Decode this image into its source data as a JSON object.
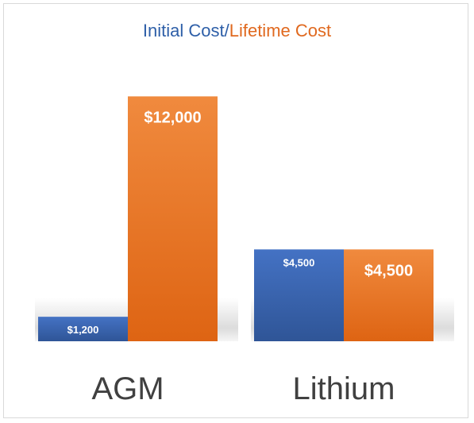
{
  "chart_data": {
    "type": "bar",
    "title_parts": {
      "first": "Initial Cost",
      "separator": "/",
      "second": "Lifetime Cost"
    },
    "categories": [
      "AGM",
      "Lithium"
    ],
    "series": [
      {
        "name": "Initial Cost",
        "values": [
          1200,
          4500
        ],
        "labels": [
          "$1,200",
          "$4,500"
        ],
        "color": "#3a66b7"
      },
      {
        "name": "Lifetime Cost",
        "values": [
          12000,
          4500
        ],
        "labels": [
          "$12,000",
          "$4,500"
        ],
        "color": "#ed7d31"
      }
    ],
    "ylim": [
      0,
      14000
    ],
    "grid": false,
    "legend": "none"
  }
}
